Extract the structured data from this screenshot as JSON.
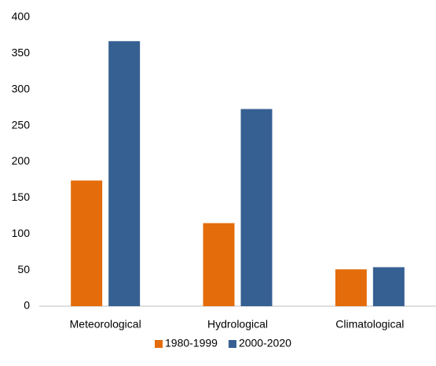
{
  "chart_data": {
    "type": "bar",
    "categories": [
      "Meteorological",
      "Hydrological",
      "Climatological"
    ],
    "series": [
      {
        "name": "1980-1999",
        "color": "#e46c0a",
        "values": [
          174,
          115,
          51
        ]
      },
      {
        "name": "2000-2020",
        "color": "#366092",
        "values": [
          367,
          273,
          54
        ]
      }
    ],
    "ylim": [
      0,
      400
    ],
    "yticks": [
      0,
      50,
      100,
      150,
      200,
      250,
      300,
      350,
      400
    ],
    "grid": false,
    "legend": "bottom"
  }
}
